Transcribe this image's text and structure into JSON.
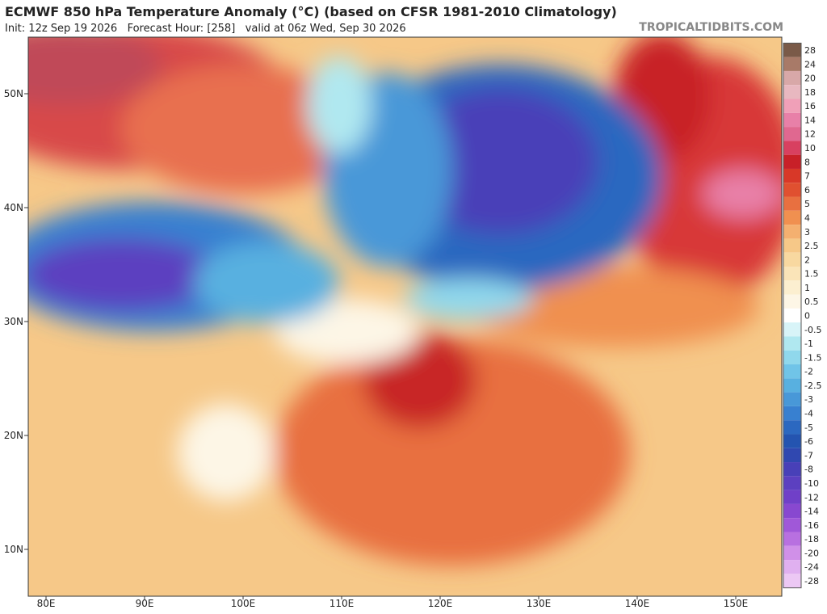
{
  "header": {
    "title": "ECMWF 850 hPa Temperature Anomaly (°C) (based on CFSR 1981-2010 Climatology)",
    "subtitle": "Init: 12z Sep 19 2026   Forecast Hour: [258]   valid at 06z Wed, Sep 30 2026",
    "site": "TROPICALTIDBITS.COM"
  },
  "map": {
    "lat_labels": [
      "50N",
      "40N",
      "30N",
      "20N",
      "10N"
    ],
    "lon_labels": [
      "80E",
      "90E",
      "100E",
      "110E",
      "120E",
      "130E",
      "140E",
      "150E"
    ]
  },
  "colorbar": {
    "values": [
      28,
      24,
      20,
      18,
      16,
      14,
      12,
      10,
      8,
      7,
      6,
      5,
      4,
      3,
      2.5,
      2,
      1.5,
      1,
      0.5,
      0,
      -0.5,
      -1,
      -1.5,
      -2,
      -2.5,
      -3,
      -4,
      -5,
      -6,
      -7,
      -8,
      -10,
      -12,
      -14,
      -16,
      -18,
      -20,
      -24,
      -28
    ],
    "colors": [
      "#7a5a48",
      "#a87a68",
      "#d8a8a8",
      "#e8b8c0",
      "#f0a0b8",
      "#e880a8",
      "#e06890",
      "#d84060",
      "#c82028",
      "#d83828",
      "#e05030",
      "#e87040",
      "#f09050",
      "#f4b070",
      "#f6c888",
      "#f8d8a0",
      "#fae4b8",
      "#fcefd0",
      "#fdf6e6",
      "#ffffff",
      "#d8f4f8",
      "#b0e8f0",
      "#90d8ec",
      "#70c4e8",
      "#58b0e0",
      "#4898d8",
      "#3880d0",
      "#2c68c0",
      "#2454b0",
      "#3048b0",
      "#4840b8",
      "#5c40c0",
      "#7040c8",
      "#8848d0",
      "#a058d8",
      "#b870e0",
      "#d090e8",
      "#e0b0f0",
      "#ecc8f4"
    ]
  }
}
